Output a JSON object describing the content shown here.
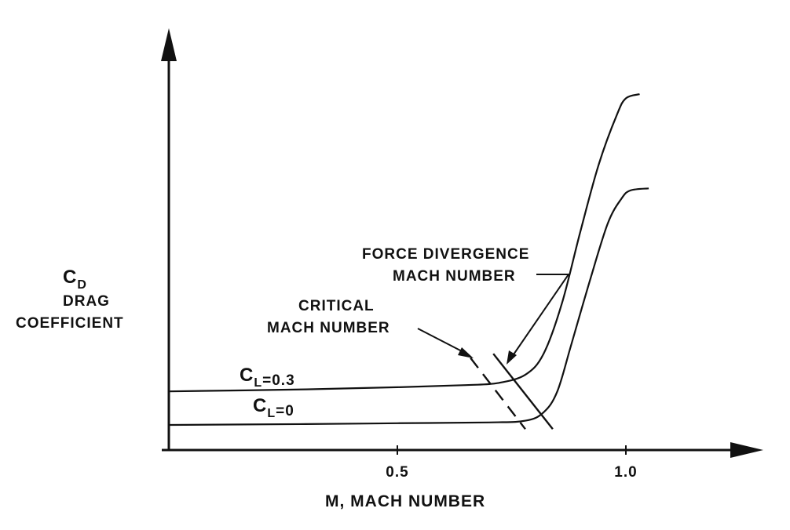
{
  "chart_data": {
    "type": "line",
    "title": "",
    "xlabel": "M, MACH NUMBER",
    "ylabel": {
      "symbol_main": "C",
      "symbol_sub": "D",
      "line1": "DRAG",
      "line2": "COEFFICIENT"
    },
    "xlim": [
      0,
      1.3
    ],
    "ylim": [
      0,
      1.0
    ],
    "x_ticks": [
      {
        "value": 0.5,
        "label": "0.5"
      },
      {
        "value": 1.0,
        "label": "1.0"
      }
    ],
    "grid": false,
    "series": [
      {
        "name": "C_L = 0.3",
        "label_main": "C",
        "label_sub": "L",
        "label_value": "=0.3",
        "x": [
          0.0,
          0.3,
          0.5,
          0.65,
          0.72,
          0.78,
          0.82,
          0.86,
          0.9,
          0.94,
          0.98,
          1.0,
          1.03
        ],
        "y": [
          0.14,
          0.145,
          0.15,
          0.155,
          0.16,
          0.18,
          0.23,
          0.35,
          0.52,
          0.68,
          0.8,
          0.84,
          0.85
        ]
      },
      {
        "name": "C_L = 0",
        "label_main": "C",
        "label_sub": "L",
        "label_value": "=0",
        "x": [
          0.0,
          0.3,
          0.5,
          0.7,
          0.78,
          0.82,
          0.85,
          0.88,
          0.92,
          0.96,
          0.99,
          1.01,
          1.05
        ],
        "y": [
          0.06,
          0.062,
          0.064,
          0.066,
          0.07,
          0.09,
          0.14,
          0.25,
          0.4,
          0.54,
          0.6,
          0.62,
          0.625
        ]
      }
    ],
    "annotations": {
      "critical": {
        "line1": "CRITICAL",
        "line2": "MACH NUMBER",
        "marker_x": [
          0.66,
          0.78
        ],
        "marker_y": [
          0.22,
          0.05
        ]
      },
      "force_divergence": {
        "line1": "FORCE DIVERGENCE",
        "line2": "MACH NUMBER",
        "marker_x": [
          0.71,
          0.84
        ],
        "marker_y": [
          0.23,
          0.05
        ]
      }
    }
  }
}
